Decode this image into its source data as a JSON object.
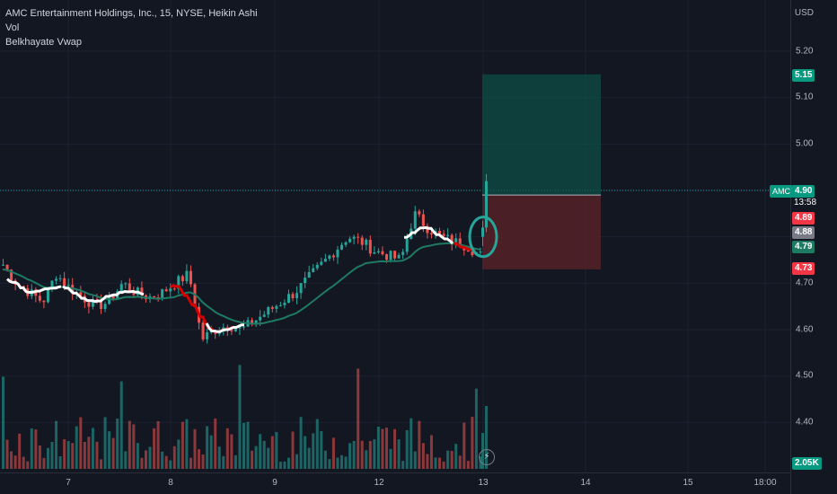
{
  "legend": {
    "symbol_line": "AMC Entertainment Holdings, Inc., 15, NYSE, Heikin Ashi",
    "vol_label": "Vol",
    "indicator_label": "Belkhayate Vwap"
  },
  "price_axis": {
    "currency": "USD",
    "ticks": [
      "5.20",
      "5.10",
      "5.00",
      "4.70",
      "4.60",
      "4.50",
      "4.40"
    ]
  },
  "badges": {
    "take_profit": "5.15",
    "last_price": "4.90",
    "countdown": "13:58",
    "ticker": "AMC",
    "entry": "4.89",
    "gray_level": "4.88",
    "vwap_level": "4.79",
    "stop_loss": "4.73",
    "volume": "2.05K"
  },
  "time_axis": {
    "ticks": [
      "7",
      "8",
      "9",
      "12",
      "13",
      "14",
      "15",
      "18:00"
    ]
  },
  "colors": {
    "background": "#131722",
    "up": "#26a69a",
    "down": "#ef5350",
    "vwap_line": "#1e7a63",
    "belkhayate_white": "#ffffff",
    "belkhayate_red": "#d50000",
    "profit_zone": "#0e4d45",
    "loss_zone": "#5a2228",
    "circle": "#26a69a"
  },
  "chart_data": {
    "type": "candlestick",
    "chart_style": "Heikin Ashi",
    "interval": "15",
    "y_range": [
      4.32,
      5.28
    ],
    "x_session_labels": [
      "7",
      "8",
      "9",
      "12",
      "13",
      "14",
      "15",
      "18:00"
    ],
    "series": [
      {
        "name": "Vol",
        "type": "bar"
      },
      {
        "name": "Belkhayate Vwap",
        "type": "line"
      }
    ],
    "approx_closes_by_session": {
      "7": [
        4.72,
        4.69,
        4.67,
        4.65,
        4.66,
        4.7,
        4.68,
        4.67,
        4.68,
        4.7
      ],
      "8": [
        4.72,
        4.58,
        4.6,
        4.61,
        4.6,
        4.62,
        4.64,
        4.66,
        4.68
      ],
      "9": [
        4.71,
        4.74,
        4.77,
        4.8,
        4.79,
        4.77,
        4.76,
        4.75
      ],
      "12": [
        4.85,
        4.82,
        4.8,
        4.79,
        4.78,
        4.76
      ],
      "13": [
        4.8,
        4.92
      ]
    },
    "position": {
      "entry": 4.89,
      "take_profit": 5.15,
      "stop_loss": 4.73
    }
  }
}
